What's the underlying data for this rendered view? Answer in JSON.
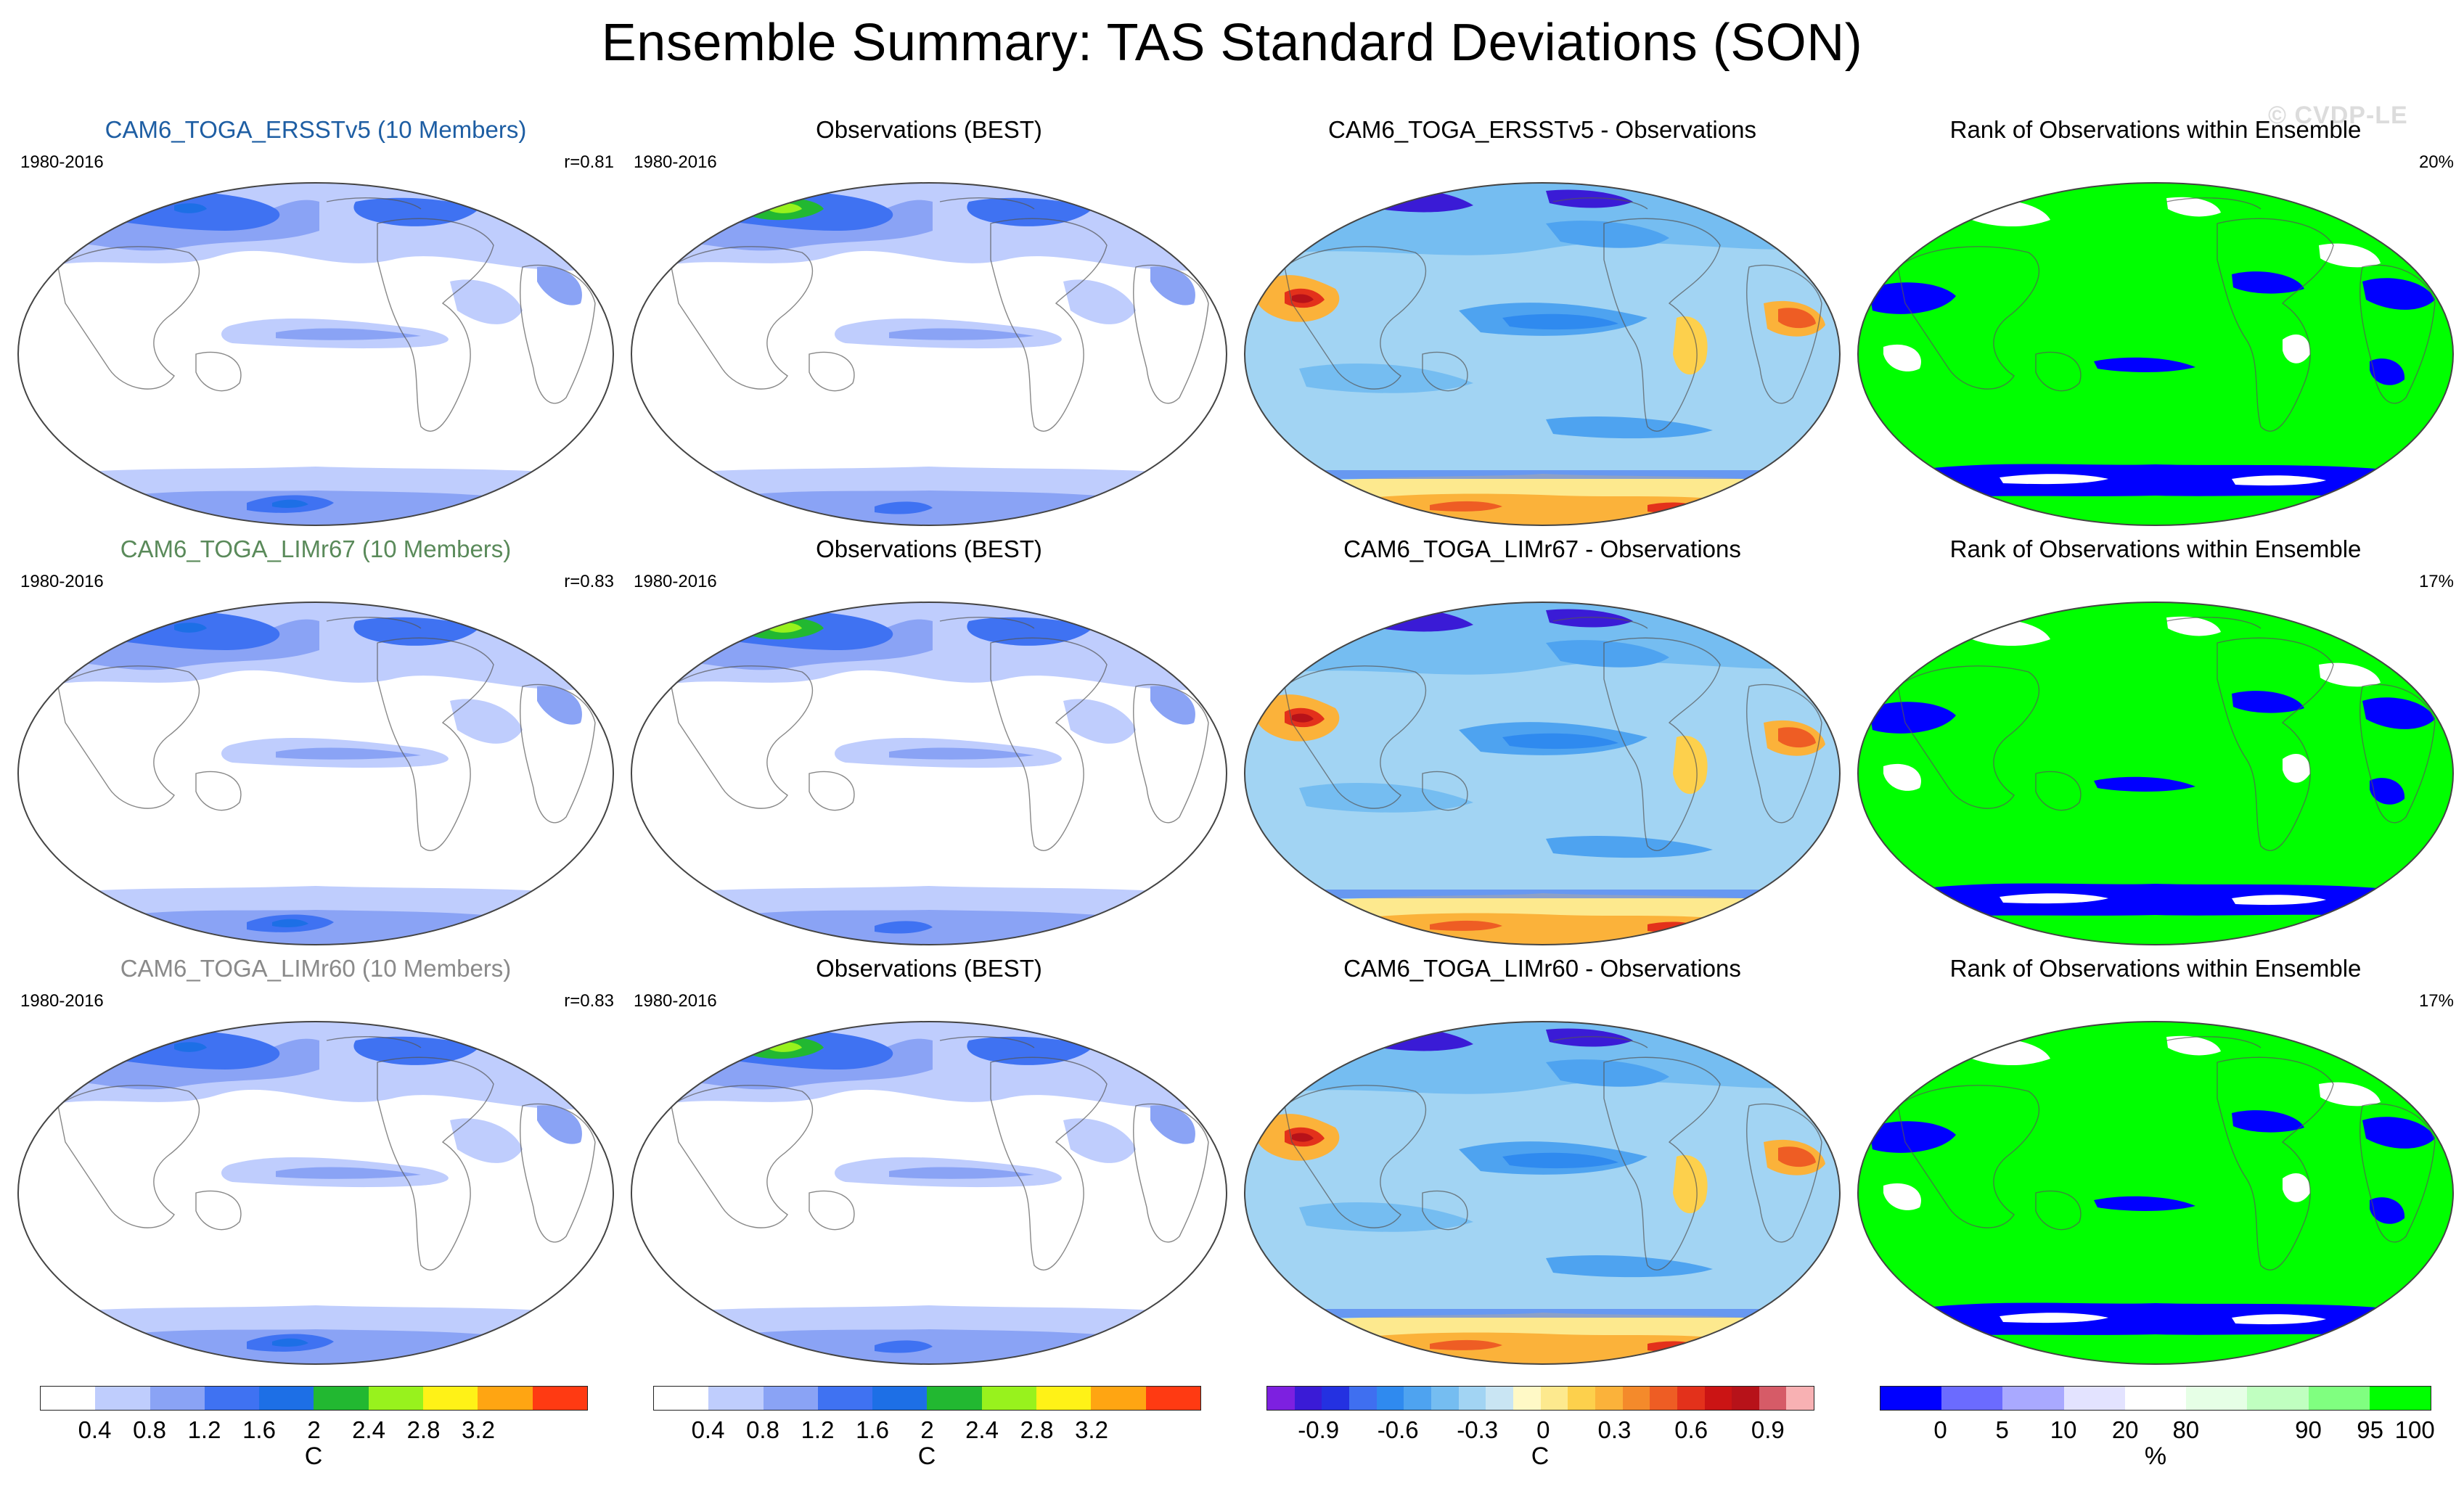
{
  "title": "Ensemble Summary: TAS Standard Deviations (SON)",
  "watermark": "© CVDP-LE",
  "colors": {
    "sd": [
      "#ffffff",
      "#bfcdfd",
      "#8aa3f5",
      "#3f72f2",
      "#1d6fe6",
      "#22b831",
      "#98f21d",
      "#fff217",
      "#ffa512",
      "#ff3a12"
    ],
    "diff": [
      "#7d20e0",
      "#3a1bd6",
      "#2431e1",
      "#3f6ff0",
      "#2f8aef",
      "#4ea3f0",
      "#75bdf1",
      "#a2d4f3",
      "#c9e5f3",
      "#fff9c6",
      "#fde98e",
      "#fdd04c",
      "#fbb23a",
      "#f48a2b",
      "#ee5d24",
      "#e3311b",
      "#cb1414",
      "#b71219",
      "#d65b67",
      "#f8b1b3"
    ],
    "rank": [
      "#0000ff",
      "#6b6bff",
      "#a9a9ff",
      "#e3e3ff",
      "#ffffff",
      "#e6ffe6",
      "#c0ffc0",
      "#80ff80",
      "#00ff00"
    ]
  },
  "rows": [
    {
      "model": {
        "title": "CAM6_TOGA_ERSSTv5 (10 Members)",
        "title_color": "#1e5ea3",
        "period": "1980-2016",
        "r": "r=0.81"
      },
      "obs": {
        "title": "Observations (BEST)",
        "period": "1980-2016"
      },
      "diff": {
        "title": "CAM6_TOGA_ERSSTv5 - Observations"
      },
      "rank": {
        "title": "Rank of Observations within Ensemble",
        "pct": "20%"
      }
    },
    {
      "model": {
        "title": "CAM6_TOGA_LIMr67 (10 Members)",
        "title_color": "#5a8a5a",
        "period": "1980-2016",
        "r": "r=0.83"
      },
      "obs": {
        "title": "Observations (BEST)",
        "period": "1980-2016"
      },
      "diff": {
        "title": "CAM6_TOGA_LIMr67 - Observations"
      },
      "rank": {
        "title": "Rank of Observations within Ensemble",
        "pct": "17%"
      }
    },
    {
      "model": {
        "title": "CAM6_TOGA_LIMr60 (10 Members)",
        "title_color": "#8a8a8a",
        "period": "1980-2016",
        "r": "r=0.83"
      },
      "obs": {
        "title": "Observations (BEST)",
        "period": "1980-2016"
      },
      "diff": {
        "title": "CAM6_TOGA_LIMr60 - Observations"
      },
      "rank": {
        "title": "Rank of Observations within Ensemble",
        "pct": "17%"
      }
    }
  ],
  "colorbars": {
    "sd": {
      "ticks": [
        "0.4",
        "0.8",
        "1.2",
        "1.6",
        "2",
        "2.4",
        "2.8",
        "3.2"
      ],
      "units": "C"
    },
    "diff": {
      "ticks": [
        "-0.9",
        "-0.6",
        "-0.3",
        "0",
        "0.3",
        "0.6",
        "0.9"
      ],
      "units": "C"
    },
    "rank": {
      "ticks": [
        "0",
        "5",
        "10",
        "20",
        "80",
        "90",
        "95",
        "100"
      ],
      "units": "%"
    }
  }
}
